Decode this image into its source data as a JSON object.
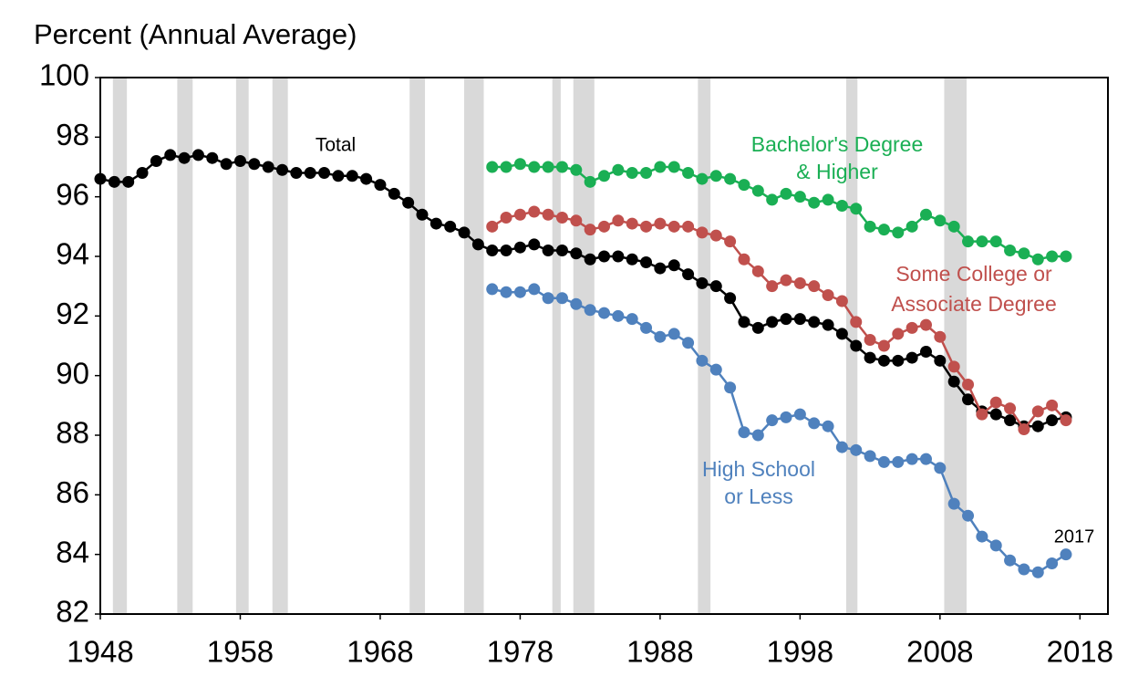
{
  "chart_data": {
    "type": "line",
    "subtitle": "Percent (Annual Average)",
    "xlim": [
      1948,
      2020
    ],
    "xticks": [
      1948,
      1958,
      1968,
      1978,
      1988,
      1998,
      2008,
      2018
    ],
    "ylim": [
      82,
      100
    ],
    "yticks": [
      82,
      84,
      86,
      88,
      90,
      92,
      94,
      96,
      98,
      100
    ],
    "grid": false,
    "recessions": [
      [
        1948.9,
        1949.9
      ],
      [
        1953.5,
        1954.6
      ],
      [
        1957.7,
        1958.6
      ],
      [
        1960.3,
        1961.4
      ],
      [
        1970.1,
        1971.2
      ],
      [
        1974.0,
        1975.4
      ],
      [
        1980.3,
        1980.9
      ],
      [
        1981.8,
        1983.3
      ],
      [
        1990.7,
        1991.6
      ],
      [
        2001.3,
        2002.1
      ],
      [
        2008.3,
        2009.9
      ]
    ],
    "recession_color": "#d9d9d9",
    "series": [
      {
        "color": "#000000",
        "x": [
          1948,
          1949,
          1950,
          1951,
          1952,
          1953,
          1954,
          1955,
          1956,
          1957,
          1958,
          1959,
          1960,
          1961,
          1962,
          1963,
          1964,
          1965,
          1966,
          1967,
          1968,
          1969,
          1970,
          1971,
          1972,
          1973,
          1974,
          1975,
          1976,
          1977,
          1978,
          1979,
          1980,
          1981,
          1982,
          1983,
          1984,
          1985,
          1986,
          1987,
          1988,
          1989,
          1990,
          1991,
          1992,
          1993,
          1994,
          1995,
          1996,
          1997,
          1998,
          1999,
          2000,
          2001,
          2002,
          2003,
          2004,
          2005,
          2006,
          2007,
          2008,
          2009,
          2010,
          2011,
          2012,
          2013,
          2014,
          2015,
          2016,
          2017
        ],
        "values": [
          96.6,
          96.5,
          96.5,
          96.8,
          97.2,
          97.4,
          97.3,
          97.4,
          97.3,
          97.1,
          97.2,
          97.1,
          97.0,
          96.9,
          96.8,
          96.8,
          96.8,
          96.7,
          96.7,
          96.6,
          96.4,
          96.1,
          95.8,
          95.4,
          95.1,
          95.0,
          94.8,
          94.4,
          94.2,
          94.2,
          94.3,
          94.4,
          94.2,
          94.2,
          94.1,
          93.9,
          94.0,
          94.0,
          93.9,
          93.8,
          93.6,
          93.7,
          93.4,
          93.1,
          93.0,
          92.6,
          91.8,
          91.6,
          91.8,
          91.9,
          91.9,
          91.8,
          91.7,
          91.4,
          91.0,
          90.6,
          90.5,
          90.5,
          90.6,
          90.8,
          90.5,
          89.8,
          89.2,
          88.8,
          88.7,
          88.5,
          88.3,
          88.3,
          88.5,
          88.6
        ]
      },
      {
        "color": "#1aaf54",
        "x": [
          1976,
          1977,
          1978,
          1979,
          1980,
          1981,
          1982,
          1983,
          1984,
          1985,
          1986,
          1987,
          1988,
          1989,
          1990,
          1991,
          1992,
          1993,
          1994,
          1995,
          1996,
          1997,
          1998,
          1999,
          2000,
          2001,
          2002,
          2003,
          2004,
          2005,
          2006,
          2007,
          2008,
          2009,
          2010,
          2011,
          2012,
          2013,
          2014,
          2015,
          2016,
          2017
        ],
        "values": [
          97.0,
          97.0,
          97.1,
          97.0,
          97.0,
          97.0,
          96.9,
          96.5,
          96.7,
          96.9,
          96.8,
          96.8,
          97.0,
          97.0,
          96.8,
          96.6,
          96.7,
          96.6,
          96.4,
          96.2,
          95.9,
          96.1,
          96.0,
          95.8,
          95.9,
          95.7,
          95.6,
          95.0,
          94.9,
          94.8,
          95.0,
          95.4,
          95.2,
          95.0,
          94.5,
          94.5,
          94.5,
          94.2,
          94.1,
          93.9,
          94.0,
          94.0
        ]
      },
      {
        "color": "#c0504d",
        "x": [
          1976,
          1977,
          1978,
          1979,
          1980,
          1981,
          1982,
          1983,
          1984,
          1985,
          1986,
          1987,
          1988,
          1989,
          1990,
          1991,
          1992,
          1993,
          1994,
          1995,
          1996,
          1997,
          1998,
          1999,
          2000,
          2001,
          2002,
          2003,
          2004,
          2005,
          2006,
          2007,
          2008,
          2009,
          2010,
          2011,
          2012,
          2013,
          2014,
          2015,
          2016,
          2017
        ],
        "values": [
          95.0,
          95.3,
          95.4,
          95.5,
          95.4,
          95.3,
          95.2,
          94.9,
          95.0,
          95.2,
          95.1,
          95.0,
          95.1,
          95.0,
          95.0,
          94.8,
          94.7,
          94.5,
          93.9,
          93.5,
          93.0,
          93.2,
          93.1,
          93.0,
          92.7,
          92.5,
          91.8,
          91.2,
          91.0,
          91.4,
          91.6,
          91.7,
          91.3,
          90.3,
          89.7,
          88.7,
          89.1,
          88.9,
          88.2,
          88.8,
          89.0,
          88.5
        ]
      },
      {
        "color": "#4f81bd",
        "x": [
          1976,
          1977,
          1978,
          1979,
          1980,
          1981,
          1982,
          1983,
          1984,
          1985,
          1986,
          1987,
          1988,
          1989,
          1990,
          1991,
          1992,
          1993,
          1994,
          1995,
          1996,
          1997,
          1998,
          1999,
          2000,
          2001,
          2002,
          2003,
          2004,
          2005,
          2006,
          2007,
          2008,
          2009,
          2010,
          2011,
          2012,
          2013,
          2014,
          2015,
          2016,
          2017
        ],
        "values": [
          92.9,
          92.8,
          92.8,
          92.9,
          92.6,
          92.6,
          92.4,
          92.2,
          92.1,
          92.0,
          91.9,
          91.6,
          91.3,
          91.4,
          91.1,
          90.5,
          90.2,
          89.6,
          88.1,
          88.0,
          88.5,
          88.6,
          88.7,
          88.4,
          88.3,
          87.6,
          87.5,
          87.3,
          87.1,
          87.1,
          87.2,
          87.2,
          86.9,
          85.7,
          85.3,
          84.6,
          84.3,
          83.8,
          83.5,
          83.4,
          83.7,
          84.0
        ]
      }
    ],
    "annotations": [
      {
        "text": "Total",
        "color": "#000000"
      },
      {
        "text": "Bachelor's Degree",
        "color": "#1aaf54"
      },
      {
        "text": "& Higher",
        "color": "#1aaf54"
      },
      {
        "text": "Some  College or",
        "color": "#c0504d"
      },
      {
        "text": "Associate  Degree",
        "color": "#c0504d"
      },
      {
        "text": "High School",
        "color": "#4f81bd"
      },
      {
        "text": "or Less",
        "color": "#4f81bd"
      },
      {
        "text": "2017",
        "color": "#000000"
      }
    ]
  }
}
